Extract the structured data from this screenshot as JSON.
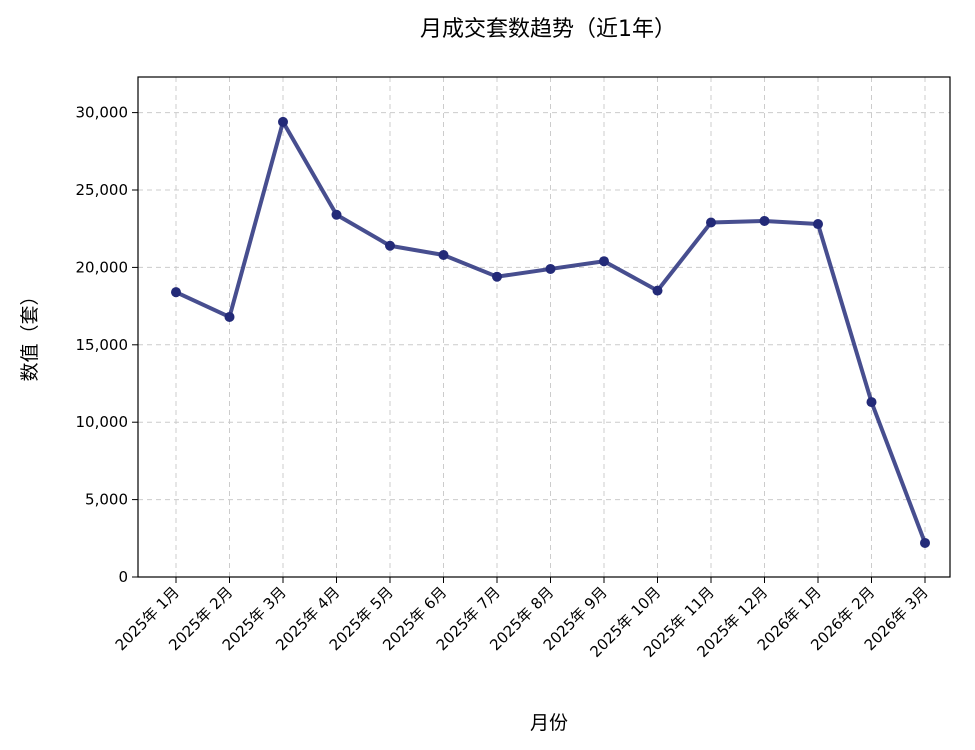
{
  "chart_data": {
    "type": "line",
    "title": "月成交套数趋势（近1年）",
    "xlabel": "月份",
    "ylabel": "数值（套）",
    "categories": [
      "2025年 1月",
      "2025年 2月",
      "2025年 3月",
      "2025年 4月",
      "2025年 5月",
      "2025年 6月",
      "2025年 7月",
      "2025年 8月",
      "2025年 9月",
      "2025年 10月",
      "2025年 11月",
      "2025年 12月",
      "2026年 1月",
      "2026年 2月",
      "2026年 3月"
    ],
    "series": [
      {
        "values": [
          18400,
          16800,
          29400,
          23400,
          21400,
          20800,
          19400,
          19900,
          20400,
          18500,
          22900,
          23000,
          22800,
          11300,
          2200
        ]
      }
    ],
    "ylim": [
      0,
      32300
    ],
    "yticks": [
      0,
      5000,
      10000,
      15000,
      20000,
      25000,
      30000
    ],
    "ytick_labels": [
      "0",
      "5,000",
      "10,000",
      "15,000",
      "20,000",
      "25,000",
      "30,000"
    ],
    "grid": true,
    "colors": {
      "line": "#2e3580",
      "marker": "#232a78",
      "grid": "#cccccc"
    }
  }
}
